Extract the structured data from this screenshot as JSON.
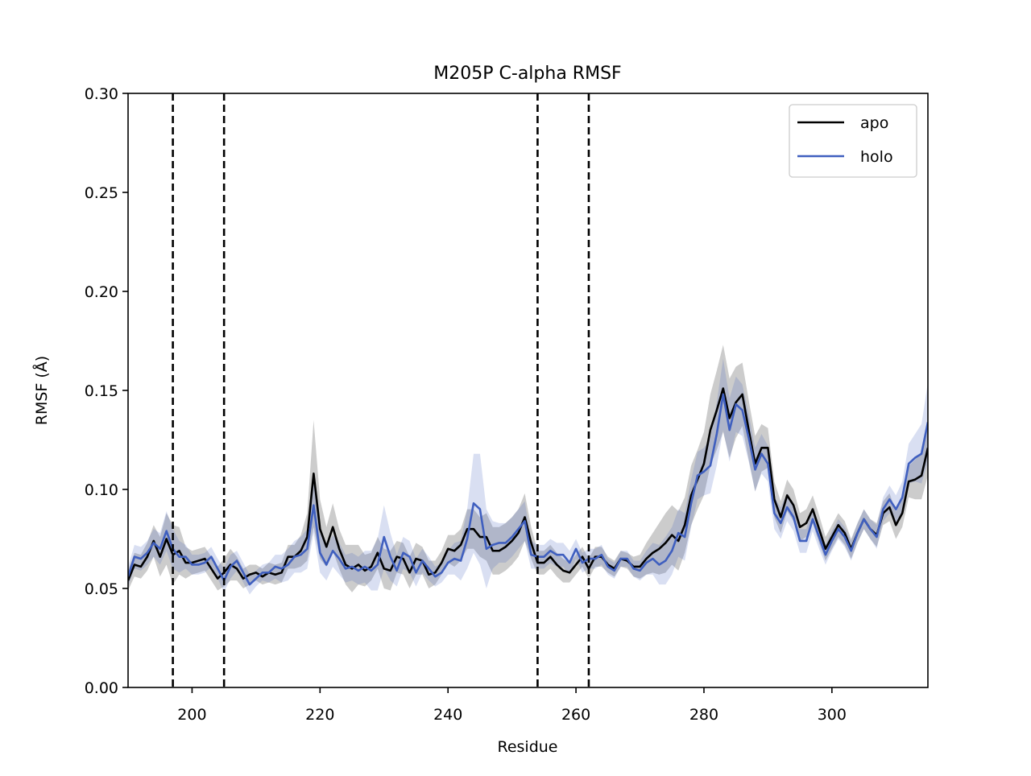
{
  "chart_data": {
    "type": "line",
    "title": "M205P C-alpha RMSF",
    "x_label": "Residue",
    "y_label": "RMSF (Å)",
    "xlim": [
      190,
      315
    ],
    "ylim": [
      0,
      0.3
    ],
    "xticks": [
      200,
      220,
      240,
      260,
      280,
      300
    ],
    "yticks": [
      {
        "value": 0,
        "label": "0.00"
      },
      0.05,
      {
        "value": 0.1,
        "label": "0.10"
      },
      0.15,
      {
        "value": 0.2,
        "label": "0.20"
      },
      0.25,
      {
        "value": 0.3,
        "label": "0.30"
      }
    ],
    "vlines": [
      197,
      205,
      254,
      262
    ],
    "legend": "upper right",
    "x": [
      190,
      191,
      192,
      193,
      194,
      195,
      196,
      197,
      198,
      199,
      200,
      201,
      202,
      203,
      204,
      205,
      206,
      207,
      208,
      209,
      210,
      211,
      212,
      213,
      214,
      215,
      216,
      217,
      218,
      219,
      220,
      221,
      222,
      223,
      224,
      225,
      226,
      227,
      228,
      229,
      230,
      231,
      232,
      233,
      234,
      235,
      236,
      237,
      238,
      239,
      240,
      241,
      242,
      243,
      244,
      245,
      246,
      247,
      248,
      249,
      250,
      251,
      252,
      253,
      254,
      255,
      256,
      257,
      258,
      259,
      260,
      261,
      262,
      263,
      264,
      265,
      266,
      267,
      268,
      269,
      270,
      271,
      272,
      273,
      274,
      275,
      276,
      277,
      278,
      279,
      280,
      281,
      282,
      283,
      284,
      285,
      286,
      287,
      288,
      289,
      290,
      291,
      292,
      293,
      294,
      295,
      296,
      297,
      298,
      299,
      300,
      301,
      302,
      303,
      304,
      305,
      306,
      307,
      308,
      309,
      310,
      311,
      312,
      313,
      314,
      315
    ],
    "series": [
      {
        "name": "apo",
        "color": "#000000",
        "values": [
          0.054,
          0.062,
          0.061,
          0.066,
          0.074,
          0.066,
          0.075,
          0.067,
          0.069,
          0.063,
          0.063,
          0.064,
          0.065,
          0.06,
          0.055,
          0.058,
          0.062,
          0.06,
          0.055,
          0.057,
          0.058,
          0.056,
          0.058,
          0.057,
          0.058,
          0.066,
          0.066,
          0.069,
          0.076,
          0.108,
          0.08,
          0.071,
          0.081,
          0.07,
          0.062,
          0.06,
          0.062,
          0.059,
          0.061,
          0.068,
          0.06,
          0.059,
          0.066,
          0.065,
          0.058,
          0.065,
          0.064,
          0.057,
          0.058,
          0.063,
          0.07,
          0.069,
          0.072,
          0.08,
          0.08,
          0.076,
          0.076,
          0.069,
          0.069,
          0.071,
          0.074,
          0.078,
          0.086,
          0.073,
          0.063,
          0.063,
          0.066,
          0.062,
          0.059,
          0.058,
          0.062,
          0.066,
          0.06,
          0.066,
          0.066,
          0.062,
          0.06,
          0.065,
          0.064,
          0.061,
          0.061,
          0.065,
          0.068,
          0.07,
          0.073,
          0.077,
          0.074,
          0.082,
          0.097,
          0.105,
          0.113,
          0.13,
          0.14,
          0.151,
          0.136,
          0.144,
          0.148,
          0.13,
          0.113,
          0.121,
          0.121,
          0.095,
          0.086,
          0.097,
          0.092,
          0.081,
          0.083,
          0.09,
          0.08,
          0.07,
          0.076,
          0.082,
          0.078,
          0.07,
          0.078,
          0.085,
          0.08,
          0.077,
          0.088,
          0.091,
          0.082,
          0.088,
          0.104,
          0.105,
          0.107,
          0.121
        ],
        "std": [
          0.005,
          0.006,
          0.006,
          0.007,
          0.008,
          0.01,
          0.013,
          0.015,
          0.012,
          0.008,
          0.006,
          0.006,
          0.006,
          0.006,
          0.006,
          0.007,
          0.008,
          0.006,
          0.005,
          0.005,
          0.004,
          0.004,
          0.005,
          0.005,
          0.005,
          0.006,
          0.006,
          0.008,
          0.012,
          0.027,
          0.015,
          0.01,
          0.012,
          0.01,
          0.01,
          0.012,
          0.01,
          0.008,
          0.007,
          0.008,
          0.01,
          0.01,
          0.008,
          0.008,
          0.008,
          0.008,
          0.007,
          0.007,
          0.006,
          0.006,
          0.007,
          0.008,
          0.008,
          0.01,
          0.01,
          0.01,
          0.012,
          0.012,
          0.012,
          0.012,
          0.012,
          0.012,
          0.012,
          0.008,
          0.006,
          0.006,
          0.006,
          0.006,
          0.006,
          0.005,
          0.005,
          0.005,
          0.005,
          0.005,
          0.005,
          0.004,
          0.004,
          0.004,
          0.004,
          0.005,
          0.006,
          0.008,
          0.01,
          0.013,
          0.015,
          0.015,
          0.015,
          0.014,
          0.015,
          0.015,
          0.016,
          0.018,
          0.02,
          0.022,
          0.02,
          0.018,
          0.016,
          0.015,
          0.014,
          0.012,
          0.01,
          0.009,
          0.008,
          0.008,
          0.008,
          0.007,
          0.007,
          0.007,
          0.007,
          0.006,
          0.006,
          0.006,
          0.006,
          0.005,
          0.005,
          0.005,
          0.005,
          0.006,
          0.006,
          0.007,
          0.007,
          0.007,
          0.008,
          0.01,
          0.012,
          0.014
        ]
      },
      {
        "name": "holo",
        "color": "#3f5fbf",
        "values": [
          0.056,
          0.066,
          0.065,
          0.068,
          0.073,
          0.07,
          0.079,
          0.07,
          0.066,
          0.066,
          0.062,
          0.062,
          0.063,
          0.066,
          0.06,
          0.054,
          0.061,
          0.064,
          0.058,
          0.052,
          0.055,
          0.058,
          0.058,
          0.061,
          0.06,
          0.062,
          0.066,
          0.067,
          0.07,
          0.092,
          0.068,
          0.062,
          0.069,
          0.065,
          0.06,
          0.061,
          0.059,
          0.061,
          0.059,
          0.062,
          0.076,
          0.066,
          0.059,
          0.068,
          0.066,
          0.058,
          0.064,
          0.06,
          0.056,
          0.058,
          0.063,
          0.065,
          0.064,
          0.075,
          0.093,
          0.09,
          0.07,
          0.072,
          0.073,
          0.073,
          0.076,
          0.08,
          0.084,
          0.067,
          0.066,
          0.066,
          0.069,
          0.067,
          0.067,
          0.063,
          0.07,
          0.063,
          0.065,
          0.065,
          0.067,
          0.061,
          0.059,
          0.065,
          0.065,
          0.06,
          0.059,
          0.063,
          0.065,
          0.062,
          0.064,
          0.069,
          0.078,
          0.076,
          0.093,
          0.107,
          0.109,
          0.112,
          0.128,
          0.148,
          0.13,
          0.143,
          0.14,
          0.126,
          0.11,
          0.118,
          0.113,
          0.088,
          0.083,
          0.091,
          0.086,
          0.074,
          0.074,
          0.085,
          0.076,
          0.067,
          0.074,
          0.08,
          0.076,
          0.069,
          0.078,
          0.085,
          0.08,
          0.076,
          0.09,
          0.095,
          0.09,
          0.096,
          0.113,
          0.116,
          0.118,
          0.134
        ],
        "std": [
          0.005,
          0.006,
          0.006,
          0.006,
          0.007,
          0.008,
          0.01,
          0.01,
          0.008,
          0.006,
          0.005,
          0.005,
          0.005,
          0.005,
          0.005,
          0.006,
          0.006,
          0.005,
          0.005,
          0.005,
          0.004,
          0.004,
          0.005,
          0.006,
          0.007,
          0.008,
          0.008,
          0.009,
          0.01,
          0.014,
          0.01,
          0.008,
          0.008,
          0.008,
          0.007,
          0.007,
          0.007,
          0.008,
          0.01,
          0.013,
          0.016,
          0.012,
          0.008,
          0.008,
          0.008,
          0.007,
          0.006,
          0.006,
          0.005,
          0.005,
          0.006,
          0.008,
          0.01,
          0.015,
          0.025,
          0.028,
          0.02,
          0.012,
          0.01,
          0.01,
          0.01,
          0.01,
          0.01,
          0.007,
          0.006,
          0.006,
          0.006,
          0.006,
          0.006,
          0.006,
          0.005,
          0.005,
          0.005,
          0.005,
          0.005,
          0.004,
          0.004,
          0.004,
          0.004,
          0.004,
          0.005,
          0.006,
          0.008,
          0.01,
          0.012,
          0.012,
          0.012,
          0.012,
          0.012,
          0.012,
          0.012,
          0.014,
          0.016,
          0.018,
          0.016,
          0.014,
          0.013,
          0.012,
          0.011,
          0.01,
          0.009,
          0.008,
          0.008,
          0.007,
          0.007,
          0.006,
          0.006,
          0.006,
          0.006,
          0.005,
          0.005,
          0.005,
          0.005,
          0.005,
          0.005,
          0.005,
          0.005,
          0.006,
          0.006,
          0.007,
          0.007,
          0.008,
          0.01,
          0.012,
          0.015,
          0.02
        ]
      }
    ]
  }
}
